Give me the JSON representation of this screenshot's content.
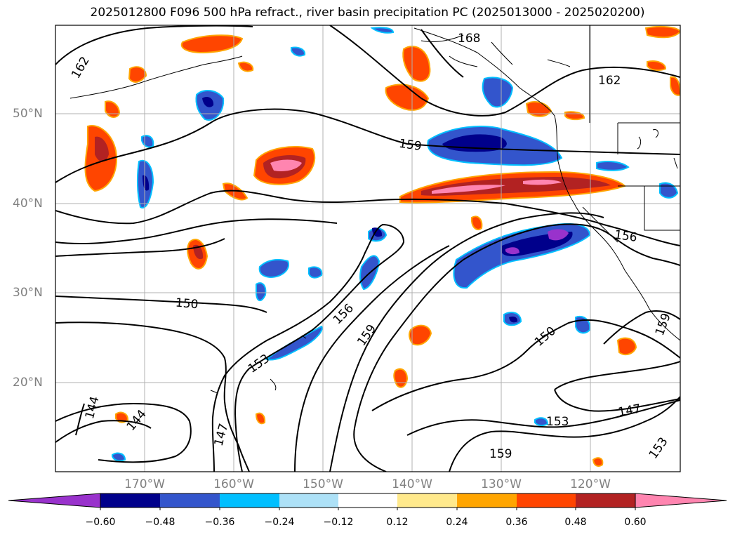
{
  "title": "2025012800 F096 500 hPa refract., river basin precipitation PC (2025013000 - 2025020200)",
  "lat_labels": [
    "50°N",
    "40°N",
    "30°N",
    "20°N"
  ],
  "lon_labels": [
    "170°W",
    "160°W",
    "150°W",
    "140°W",
    "130°W",
    "120°W"
  ],
  "contour_labels": [
    "168",
    "162",
    "162",
    "159",
    "159",
    "159",
    "156",
    "156",
    "153",
    "153",
    "153",
    "150",
    "150",
    "147",
    "147",
    "144",
    "144",
    "159"
  ],
  "colorbar": {
    "ticks": [
      "−0.60",
      "−0.48",
      "−0.36",
      "−0.24",
      "−0.12",
      "0.12",
      "0.24",
      "0.36",
      "0.48",
      "0.60"
    ],
    "colors": [
      "#9932CC",
      "#00008B",
      "#3355CC",
      "#00BFFF",
      "#ADE1F7",
      "#FFFFFF",
      "#FFE98C",
      "#FFA500",
      "#FF4500",
      "#B22222",
      "#FF85B0"
    ]
  },
  "colors": {
    "grid": "#b0b0b0",
    "contour": "#000000",
    "coast": "#000000"
  }
}
